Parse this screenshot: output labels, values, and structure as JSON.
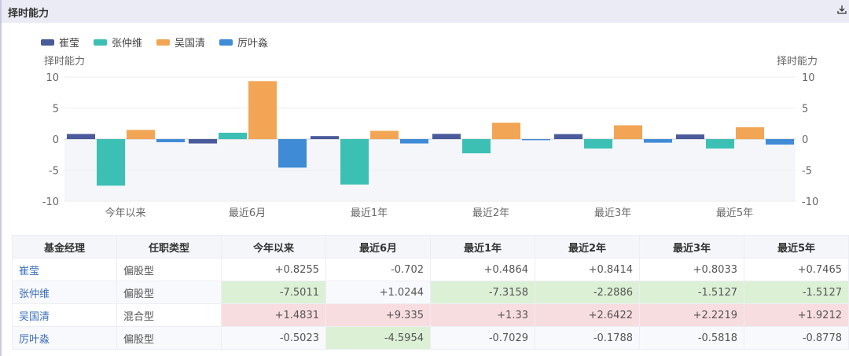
{
  "header": {
    "title": "择时能力",
    "download_icon": "download-icon"
  },
  "legend": [
    {
      "name": "崔莹",
      "color": "#4a5a9a"
    },
    {
      "name": "张仲维",
      "color": "#3cc0b4"
    },
    {
      "name": "吴国清",
      "color": "#f2a655"
    },
    {
      "name": "厉叶淼",
      "color": "#3f8bd6"
    }
  ],
  "chart_data": {
    "type": "bar",
    "ylabel_left": "择时能力",
    "ylabel_right": "择时能力",
    "ylim": [
      -10,
      10
    ],
    "yticks": [
      10,
      5,
      0,
      -5,
      -10
    ],
    "categories": [
      "今年以来",
      "最近6月",
      "最近1年",
      "最近2年",
      "最近3年",
      "最近5年"
    ],
    "series": [
      {
        "name": "崔莹",
        "values": [
          0.8255,
          -0.702,
          0.4864,
          0.8414,
          0.8033,
          0.7465
        ]
      },
      {
        "name": "张仲维",
        "values": [
          -7.5011,
          1.0244,
          -7.3158,
          -2.2886,
          -1.5127,
          -1.5127
        ]
      },
      {
        "name": "吴国清",
        "values": [
          1.4831,
          9.335,
          1.33,
          2.6422,
          2.2219,
          1.9212
        ]
      },
      {
        "name": "厉叶淼",
        "values": [
          -0.5023,
          -4.5954,
          -0.7029,
          -0.1788,
          -0.5818,
          -0.8778
        ]
      }
    ],
    "legend_position": "top-left"
  },
  "table": {
    "headers": [
      "基金经理",
      "任职类型",
      "今年以来",
      "最近6月",
      "最近1年",
      "最近2年",
      "最近3年",
      "最近5年"
    ],
    "rows": [
      {
        "cells": [
          "崔莹",
          "偏股型",
          "+0.8255",
          "-0.702",
          "+0.4864",
          "+0.8414",
          "+0.8033",
          "+0.7465"
        ],
        "hl": [
          "",
          "",
          "",
          "",
          "",
          "",
          "",
          ""
        ]
      },
      {
        "cells": [
          "张仲维",
          "偏股型",
          "-7.5011",
          "+1.0244",
          "-7.3158",
          "-2.2886",
          "-1.5127",
          "-1.5127"
        ],
        "hl": [
          "",
          "",
          "g",
          "",
          "g",
          "g",
          "g",
          "g"
        ]
      },
      {
        "cells": [
          "吴国清",
          "混合型",
          "+1.4831",
          "+9.335",
          "+1.33",
          "+2.6422",
          "+2.2219",
          "+1.9212"
        ],
        "hl": [
          "",
          "",
          "r",
          "r",
          "r",
          "r",
          "r",
          "r"
        ]
      },
      {
        "cells": [
          "厉叶淼",
          "偏股型",
          "-0.5023",
          "-4.5954",
          "-0.7029",
          "-0.1788",
          "-0.5818",
          "-0.8778"
        ],
        "hl": [
          "",
          "",
          "",
          "g",
          "",
          "",
          "",
          ""
        ]
      }
    ],
    "highlight_colors": {
      "g": "#dcf0d6",
      "r": "#f8dde0"
    }
  }
}
